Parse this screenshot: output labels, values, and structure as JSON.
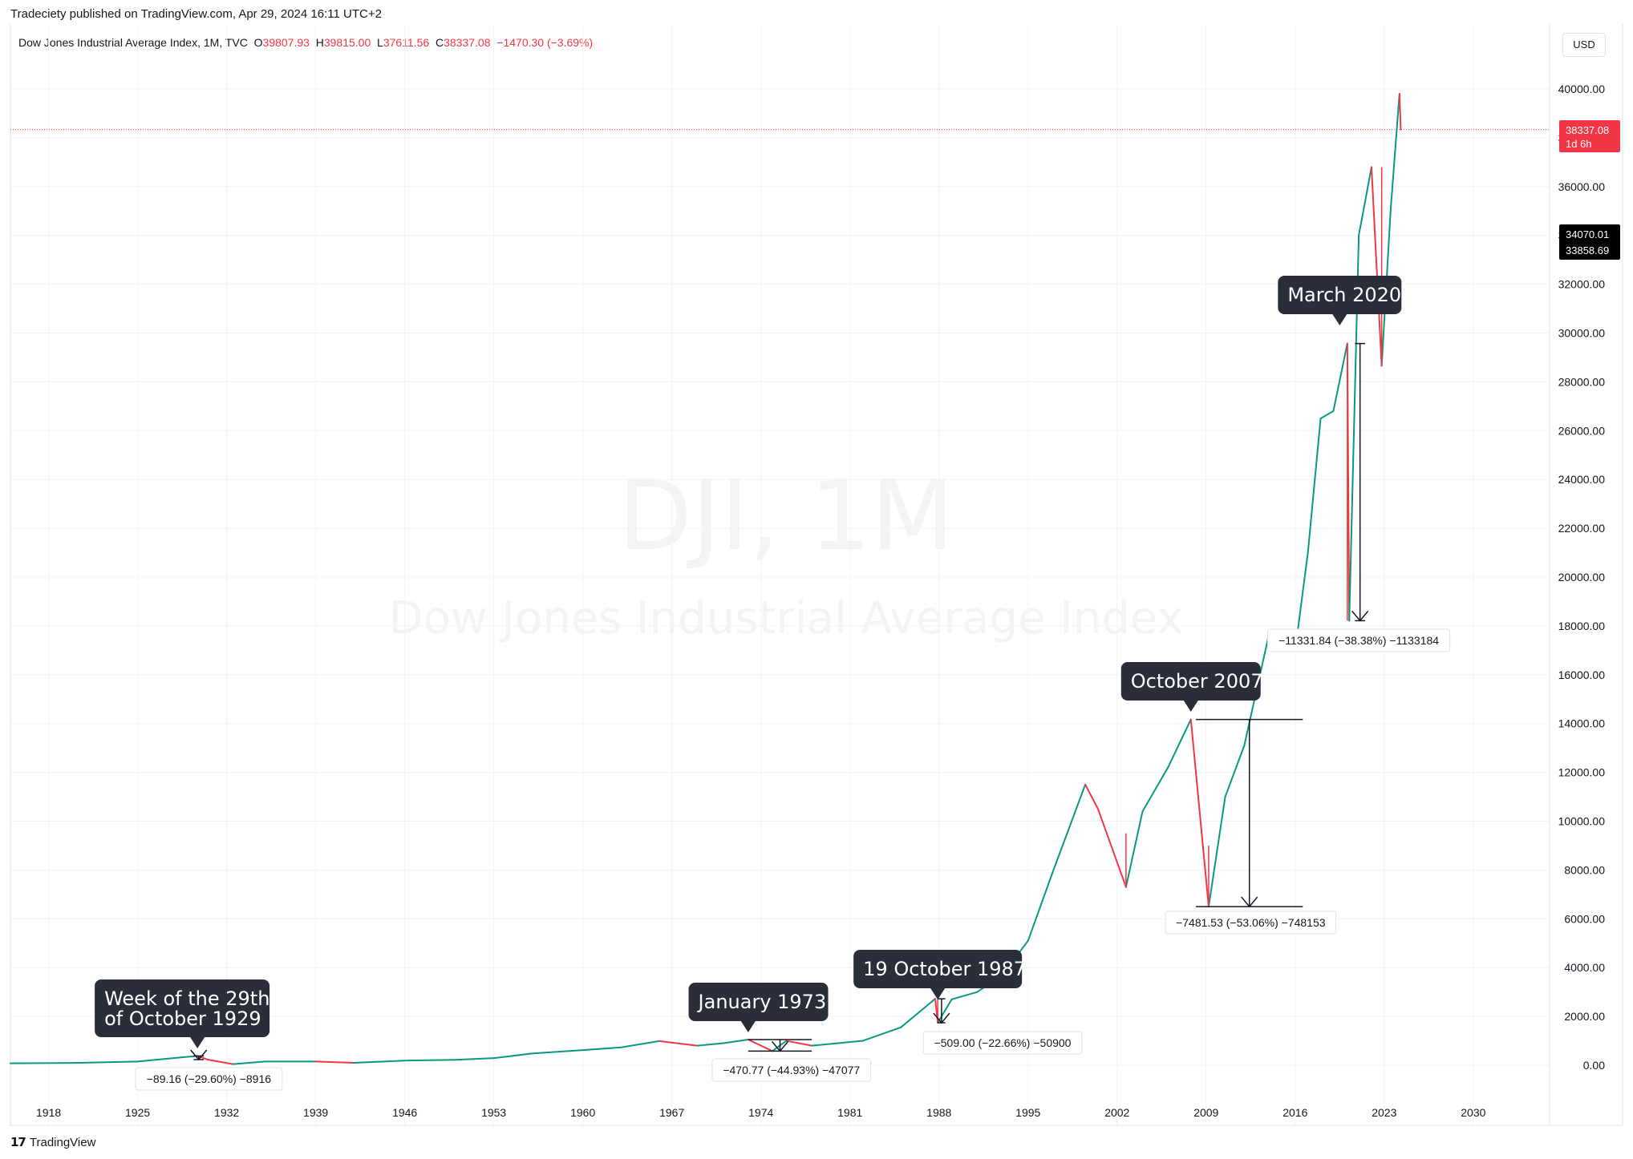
{
  "header": {
    "published": "Tradeciety published on TradingView.com, Apr 29, 2024 16:11 UTC+2",
    "symbol": "Dow Jones Industrial Average Index, 1M, TVC",
    "o_label": "O",
    "o_value": "39807.93",
    "h_label": "H",
    "h_value": "39815.00",
    "l_label": "L",
    "l_value": "37611.56",
    "c_label": "C",
    "c_value": "38337.08",
    "change": "−1470.30 (−3.69%)",
    "currency": "USD"
  },
  "watermark": {
    "ticker": "DJI, 1M",
    "name": "Dow Jones Industrial Average Index"
  },
  "footer": {
    "brand": "TradingView"
  },
  "colors": {
    "up": "#089981",
    "down": "#f23645",
    "callout": "#2a2e39",
    "text": "#131722",
    "grid": "#f0f3fa"
  },
  "price_labels": {
    "last_value": "38337.08",
    "last_sub": "1d 6h",
    "marker_1": "34070.01",
    "marker_2": "33858.69"
  },
  "chart_data": {
    "type": "line",
    "title": "",
    "x_ticks": [
      "1918",
      "1925",
      "1932",
      "1939",
      "1946",
      "1953",
      "1960",
      "1967",
      "1974",
      "1981",
      "1988",
      "1995",
      "2002",
      "2009",
      "2016",
      "2023",
      "2030"
    ],
    "y_ticks": [
      "0.00",
      "2000.00",
      "4000.00",
      "6000.00",
      "8000.00",
      "10000.00",
      "12000.00",
      "14000.00",
      "16000.00",
      "18000.00",
      "20000.00",
      "22000.00",
      "24000.00",
      "26000.00",
      "28000.00",
      "30000.00",
      "32000.00",
      "34000.00",
      "36000.00",
      "38000.00",
      "40000.00"
    ],
    "ylim": [
      0,
      40000
    ],
    "xlim": [
      1915,
      2036
    ],
    "last_price": 38337.08,
    "series": [
      {
        "x": [
          1915,
          1920,
          1925,
          1928,
          1929.7,
          1930.5,
          1932.5,
          1935,
          1939,
          1942,
          1946,
          1950,
          1953,
          1956,
          1960,
          1963,
          1966,
          1969,
          1971,
          1973.0,
          1974.9,
          1976,
          1978,
          1980,
          1982,
          1985,
          1987.7,
          1987.9,
          1989,
          1991,
          1993,
          1995,
          1997,
          1999.5,
          2000.5,
          2002.7,
          2004,
          2006,
          2007.8,
          2009.2,
          2010.5,
          2012,
          2014,
          2016,
          2017,
          2018,
          2019,
          2020.1,
          2020.25,
          2021,
          2022,
          2022.8,
          2023.5,
          2024.2,
          2024.3
        ],
        "y": [
          80,
          95,
          150,
          300,
          381,
          230,
          45,
          150,
          150,
          100,
          190,
          220,
          290,
          480,
          620,
          730,
          990,
          800,
          900,
          1051,
          580,
          1000,
          800,
          900,
          1000,
          1550,
          2722,
          1739,
          2700,
          3000,
          3700,
          5100,
          8000,
          11500,
          10500,
          7300,
          10400,
          12200,
          14165,
          6500,
          11000,
          13100,
          17800,
          17000,
          21000,
          26500,
          26800,
          29570,
          18214,
          34000,
          36800,
          28660,
          35000,
          39800,
          38337
        ]
      }
    ],
    "annotations": [
      {
        "label_lines": [
          "Week of the 29th",
          "of October 1929"
        ],
        "measure": "−89.16 (−29.60%) −8916"
      },
      {
        "label_lines": [
          "January 1973"
        ],
        "measure": "−470.77 (−44.93%) −47077"
      },
      {
        "label_lines": [
          "19 October 1987"
        ],
        "measure": "−509.00 (−22.66%) −50900"
      },
      {
        "label_lines": [
          "October 2007"
        ],
        "measure": "−7481.53 (−53.06%) −748153"
      },
      {
        "label_lines": [
          "March 2020"
        ],
        "measure": "−11331.84 (−38.38%) −1133184"
      }
    ]
  }
}
